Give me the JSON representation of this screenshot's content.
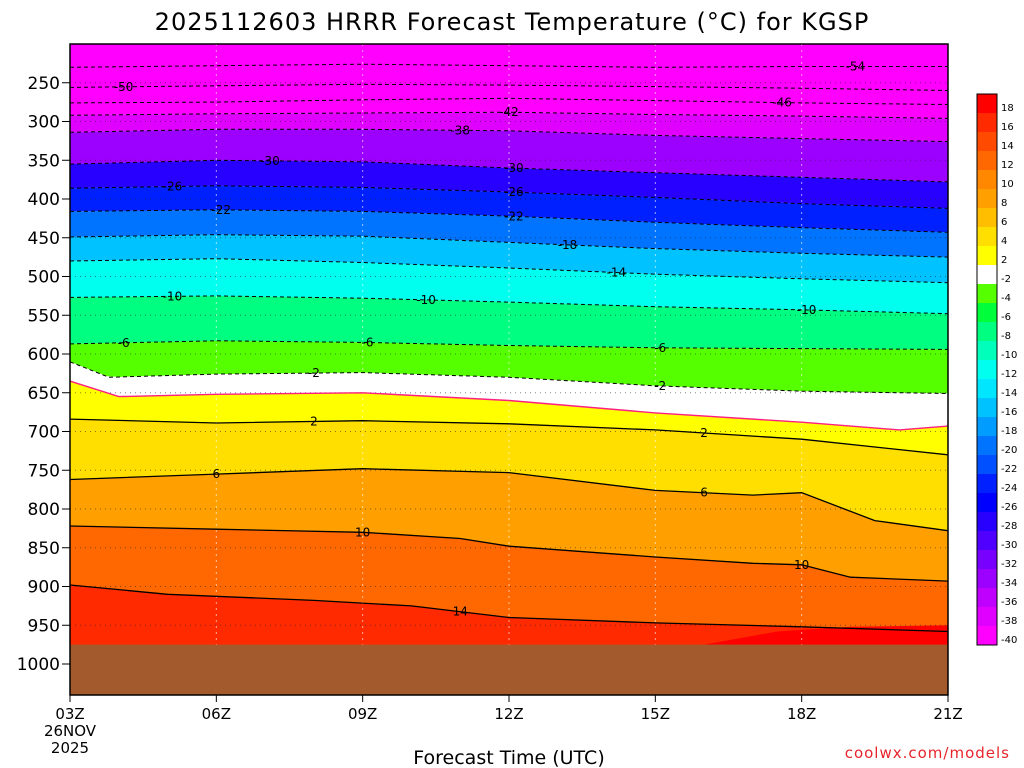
{
  "chart_data": {
    "type": "heatmap",
    "title": "2025112603 HRRR Forecast Temperature (°C) for KGSP",
    "xlabel": "Forecast Time (UTC)",
    "ylabel": "",
    "x_ticks": [
      "03Z",
      "06Z",
      "09Z",
      "12Z",
      "15Z",
      "18Z",
      "21Z"
    ],
    "x_date_label": [
      "26NOV",
      "2025"
    ],
    "y_ticks": [
      250,
      300,
      350,
      400,
      450,
      500,
      550,
      600,
      650,
      700,
      750,
      800,
      850,
      900,
      950,
      1000
    ],
    "y_unit": "hPa",
    "ylim": [
      200,
      1040
    ],
    "xlim_hours": [
      0,
      18
    ],
    "surface_pressure_hPa": 975,
    "colorbar_levels": [
      18,
      16,
      14,
      12,
      10,
      8,
      6,
      4,
      2,
      -2,
      -4,
      -6,
      -8,
      -10,
      -12,
      -14,
      -16,
      -18,
      -20,
      -22,
      -24,
      -26,
      -28,
      -30,
      -32,
      -34,
      -36,
      -38,
      -40
    ],
    "colorbar_colors": [
      "#ff0000",
      "#ff2a00",
      "#ff4a00",
      "#ff6800",
      "#ff8800",
      "#ffa000",
      "#ffbe00",
      "#ffdf00",
      "#ffff00",
      "#ffffff",
      "#55ff00",
      "#00ff3a",
      "#00ff80",
      "#00ffbb",
      "#00ffee",
      "#00e6ff",
      "#00c2ff",
      "#009cff",
      "#0074ff",
      "#0050ff",
      "#0020ff",
      "#0000ff",
      "#2800ff",
      "#5000ff",
      "#7800ff",
      "#9c00ff",
      "#c000ff",
      "#e000ff",
      "#ff00ff"
    ],
    "contours": [
      {
        "label": "-54",
        "label_at_hour": 16.1,
        "points": [
          [
            0,
            230
          ],
          [
            3,
            228
          ],
          [
            6,
            226
          ],
          [
            9,
            228
          ],
          [
            12,
            230
          ],
          [
            15,
            229
          ],
          [
            18,
            229
          ]
        ]
      },
      {
        "label": "-50",
        "label_at_hour": 1.1,
        "points": [
          [
            0,
            256
          ],
          [
            3,
            254
          ],
          [
            6,
            252
          ],
          [
            9,
            253
          ],
          [
            12,
            255
          ],
          [
            15,
            257
          ],
          [
            18,
            260
          ]
        ]
      },
      {
        "label": "-46",
        "label_at_hour": 14.6,
        "points": [
          [
            0,
            276
          ],
          [
            3,
            275
          ],
          [
            6,
            272
          ],
          [
            9,
            270
          ],
          [
            12,
            273
          ],
          [
            15,
            276
          ],
          [
            18,
            278
          ]
        ]
      },
      {
        "label": "-42",
        "label_at_hour": 9.0,
        "points": [
          [
            0,
            292
          ],
          [
            3,
            290
          ],
          [
            6,
            289
          ],
          [
            9,
            288
          ],
          [
            12,
            291
          ],
          [
            15,
            293
          ],
          [
            18,
            296
          ]
        ]
      },
      {
        "label": "-38",
        "label_at_hour": 8.0,
        "points": [
          [
            0,
            314
          ],
          [
            3,
            310
          ],
          [
            6,
            310
          ],
          [
            9,
            312
          ],
          [
            12,
            318
          ],
          [
            15,
            322
          ],
          [
            18,
            326
          ]
        ]
      },
      {
        "label": "-30",
        "label_at_hour": 4.1,
        "points": [
          [
            0,
            355
          ],
          [
            3,
            350
          ],
          [
            6,
            352
          ],
          [
            9,
            360
          ],
          [
            12,
            366
          ],
          [
            15,
            372
          ],
          [
            18,
            378
          ]
        ]
      },
      {
        "label": "-30",
        "label_at_hour": 9.1,
        "points": [
          [
            0,
            355
          ],
          [
            3,
            350
          ],
          [
            6,
            352
          ],
          [
            9,
            360
          ],
          [
            12,
            366
          ],
          [
            15,
            372
          ],
          [
            18,
            378
          ]
        ]
      },
      {
        "label": "-26",
        "label_at_hour": 2.1,
        "points": [
          [
            0,
            386
          ],
          [
            3,
            383
          ],
          [
            6,
            385
          ],
          [
            9,
            391
          ],
          [
            12,
            398
          ],
          [
            15,
            406
          ],
          [
            18,
            412
          ]
        ]
      },
      {
        "label": "-26",
        "label_at_hour": 9.1,
        "points": [
          [
            0,
            386
          ],
          [
            3,
            383
          ],
          [
            6,
            385
          ],
          [
            9,
            391
          ],
          [
            12,
            398
          ],
          [
            15,
            406
          ],
          [
            18,
            412
          ]
        ]
      },
      {
        "label": "-22",
        "label_at_hour": 3.1,
        "points": [
          [
            0,
            416
          ],
          [
            3,
            414
          ],
          [
            6,
            416
          ],
          [
            9,
            422
          ],
          [
            12,
            430
          ],
          [
            15,
            437
          ],
          [
            18,
            443
          ]
        ]
      },
      {
        "label": "-22",
        "label_at_hour": 9.1,
        "points": [
          [
            0,
            416
          ],
          [
            3,
            414
          ],
          [
            6,
            416
          ],
          [
            9,
            422
          ],
          [
            12,
            430
          ],
          [
            15,
            437
          ],
          [
            18,
            443
          ]
        ]
      },
      {
        "label": "-18",
        "label_at_hour": 10.2,
        "points": [
          [
            0,
            449
          ],
          [
            3,
            446
          ],
          [
            6,
            448
          ],
          [
            9,
            456
          ],
          [
            12,
            464
          ],
          [
            15,
            470
          ],
          [
            18,
            475
          ]
        ]
      },
      {
        "label": "-14",
        "label_at_hour": 11.2,
        "points": [
          [
            0,
            480
          ],
          [
            3,
            477
          ],
          [
            6,
            482
          ],
          [
            9,
            489
          ],
          [
            12,
            497
          ],
          [
            15,
            503
          ],
          [
            18,
            508
          ]
        ]
      },
      {
        "label": "-10",
        "label_at_hour": 2.1,
        "points": [
          [
            0,
            527
          ],
          [
            3,
            525
          ],
          [
            6,
            528
          ],
          [
            9,
            533
          ],
          [
            12,
            539
          ],
          [
            15,
            543
          ],
          [
            18,
            548
          ]
        ]
      },
      {
        "label": "-10",
        "label_at_hour": 7.3,
        "points": [
          [
            0,
            527
          ],
          [
            3,
            525
          ],
          [
            6,
            528
          ],
          [
            9,
            533
          ],
          [
            12,
            539
          ],
          [
            15,
            543
          ],
          [
            18,
            548
          ]
        ]
      },
      {
        "label": "-10",
        "label_at_hour": 15.1,
        "points": [
          [
            0,
            527
          ],
          [
            3,
            525
          ],
          [
            6,
            528
          ],
          [
            9,
            533
          ],
          [
            12,
            539
          ],
          [
            15,
            543
          ],
          [
            18,
            548
          ]
        ]
      },
      {
        "label": "-6",
        "label_at_hour": 1.1,
        "points": [
          [
            0,
            587
          ],
          [
            3,
            583
          ],
          [
            6,
            585
          ],
          [
            9,
            589
          ],
          [
            12,
            592
          ],
          [
            15,
            593
          ],
          [
            18,
            594
          ]
        ]
      },
      {
        "label": "-6",
        "label_at_hour": 6.1,
        "points": [
          [
            0,
            587
          ],
          [
            3,
            583
          ],
          [
            6,
            585
          ],
          [
            9,
            589
          ],
          [
            12,
            592
          ],
          [
            15,
            593
          ],
          [
            18,
            594
          ]
        ]
      },
      {
        "label": "-6",
        "label_at_hour": 12.1,
        "points": [
          [
            0,
            587
          ],
          [
            3,
            583
          ],
          [
            6,
            585
          ],
          [
            9,
            589
          ],
          [
            12,
            592
          ],
          [
            15,
            593
          ],
          [
            18,
            594
          ]
        ]
      },
      {
        "label": "-2",
        "label_at_hour": 5.0,
        "points": [
          [
            0,
            610
          ],
          [
            0.8,
            630
          ],
          [
            3,
            626
          ],
          [
            6,
            624
          ],
          [
            9,
            630
          ],
          [
            12,
            641
          ],
          [
            15,
            648
          ],
          [
            18,
            651
          ]
        ]
      },
      {
        "label": "-2",
        "label_at_hour": 12.1,
        "points": [
          [
            0,
            610
          ],
          [
            0.8,
            630
          ],
          [
            3,
            626
          ],
          [
            6,
            624
          ],
          [
            9,
            630
          ],
          [
            12,
            641
          ],
          [
            15,
            648
          ],
          [
            18,
            651
          ]
        ]
      },
      {
        "label": "2",
        "label_at_hour": 5.0,
        "points": [
          [
            0,
            684
          ],
          [
            3,
            689
          ],
          [
            6,
            686
          ],
          [
            9,
            690
          ],
          [
            12,
            698
          ],
          [
            15,
            710
          ],
          [
            18,
            730
          ]
        ]
      },
      {
        "label": "2",
        "label_at_hour": 13.0,
        "points": [
          [
            0,
            684
          ],
          [
            3,
            689
          ],
          [
            6,
            686
          ],
          [
            9,
            690
          ],
          [
            12,
            698
          ],
          [
            15,
            710
          ],
          [
            18,
            730
          ]
        ]
      },
      {
        "label": "6",
        "label_at_hour": 3.0,
        "points": [
          [
            0,
            762
          ],
          [
            3,
            755
          ],
          [
            6,
            748
          ],
          [
            9,
            753
          ],
          [
            12,
            776
          ],
          [
            14,
            782
          ],
          [
            15,
            779
          ],
          [
            16.5,
            815
          ],
          [
            18,
            828
          ]
        ]
      },
      {
        "label": "6",
        "label_at_hour": 13.0,
        "points": [
          [
            0,
            762
          ],
          [
            3,
            755
          ],
          [
            6,
            748
          ],
          [
            9,
            753
          ],
          [
            12,
            776
          ],
          [
            14,
            782
          ],
          [
            15,
            779
          ],
          [
            16.5,
            815
          ],
          [
            18,
            828
          ]
        ]
      },
      {
        "label": "10",
        "label_at_hour": 6.0,
        "points": [
          [
            0,
            822
          ],
          [
            3,
            826
          ],
          [
            6,
            830
          ],
          [
            8,
            838
          ],
          [
            9,
            848
          ],
          [
            12,
            862
          ],
          [
            14,
            870
          ],
          [
            15,
            872
          ],
          [
            16,
            888
          ],
          [
            18,
            893
          ]
        ]
      },
      {
        "label": "10",
        "label_at_hour": 15.0,
        "points": [
          [
            0,
            822
          ],
          [
            3,
            826
          ],
          [
            6,
            830
          ],
          [
            8,
            838
          ],
          [
            9,
            848
          ],
          [
            12,
            862
          ],
          [
            14,
            870
          ],
          [
            15,
            872
          ],
          [
            16,
            888
          ],
          [
            18,
            893
          ]
        ]
      },
      {
        "label": "14",
        "label_at_hour": 8.0,
        "points": [
          [
            0,
            898
          ],
          [
            2,
            910
          ],
          [
            5,
            918
          ],
          [
            7,
            925
          ],
          [
            9,
            940
          ],
          [
            12,
            947
          ],
          [
            15,
            952
          ],
          [
            18,
            958
          ]
        ]
      }
    ],
    "freezing_line": [
      [
        0,
        635
      ],
      [
        1,
        655
      ],
      [
        3,
        652
      ],
      [
        6,
        650
      ],
      [
        9,
        660
      ],
      [
        12,
        676
      ],
      [
        15,
        688
      ],
      [
        17,
        698
      ],
      [
        18,
        693
      ]
    ],
    "colormap_note": "magenta aloft (≤ -40) through blue/cyan/green to yellow/orange/red near the surface"
  },
  "credit": "coolwx.com/models"
}
